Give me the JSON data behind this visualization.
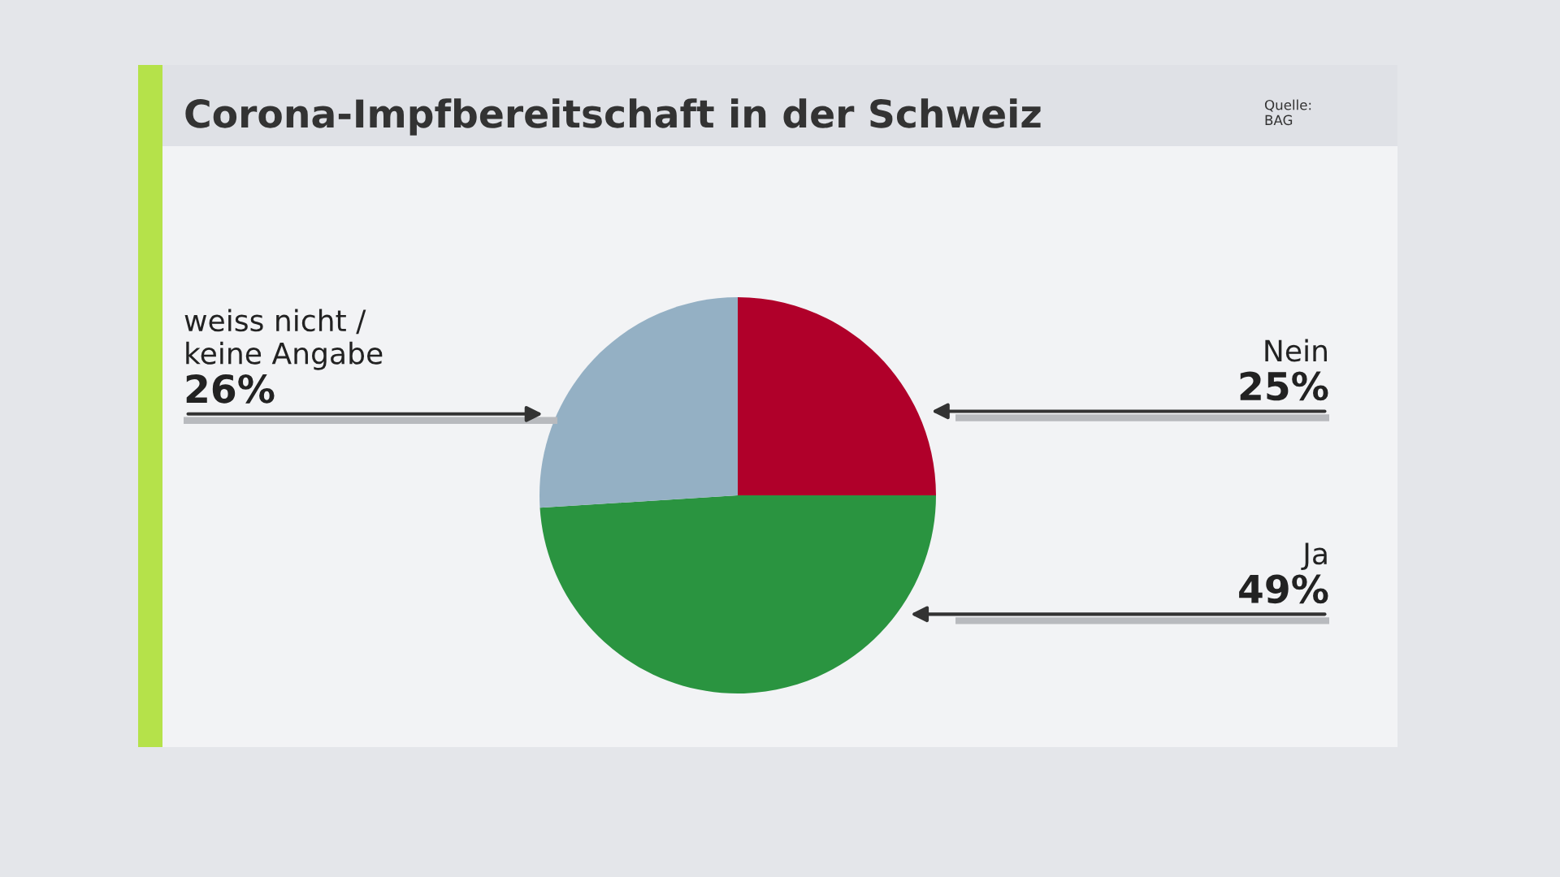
{
  "chart_data": {
    "type": "pie",
    "title": "Corona-Impfbereitschaft in der Schweiz",
    "annotations": [
      "Quelle:\nBAG"
    ],
    "categories": [
      "Nein",
      "Ja",
      "weiss nicht /\nkeine Angabe"
    ],
    "values": [
      25,
      49,
      26
    ],
    "value_labels": [
      "25%",
      "49%",
      "26%"
    ],
    "colors": [
      "#b0002a",
      "#2a9440",
      "#94b0c4"
    ],
    "legend": false
  }
}
